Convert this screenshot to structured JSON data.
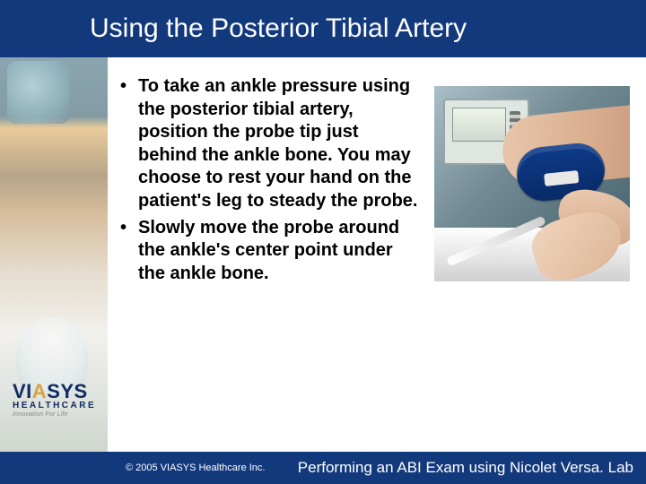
{
  "colors": {
    "bar": "#13397d",
    "text_on_bar": "#ffffff",
    "body_text": "#000000",
    "logo_blue": "#102a63",
    "logo_accent": "#d7a33a"
  },
  "title": "Using the Posterior Tibial Artery",
  "bullets": [
    "To take an ankle pressure using the posterior tibial artery, position the probe tip just behind the ankle bone. You may choose to rest your hand on the patient's leg to steady the probe.",
    "Slowly move the probe around the ankle's center point under the ankle bone."
  ],
  "logo": {
    "line1_pre": "VI",
    "line1_accent": "A",
    "line1_post": "SYS",
    "line2": "HEALTHCARE",
    "tagline": "Innovation For Life"
  },
  "footer": {
    "copyright": "© 2005 VIASYS Healthcare Inc.",
    "title": "Performing an ABI Exam using Nicolet Versa. Lab"
  },
  "image": {
    "description": "Clinical photo: Doppler device on cart at left; patient's lower leg and foot on exam bed with blue blood-pressure cuff around ankle; clinician's gloved hand holding pencil Doppler probe against posterior tibial region."
  }
}
